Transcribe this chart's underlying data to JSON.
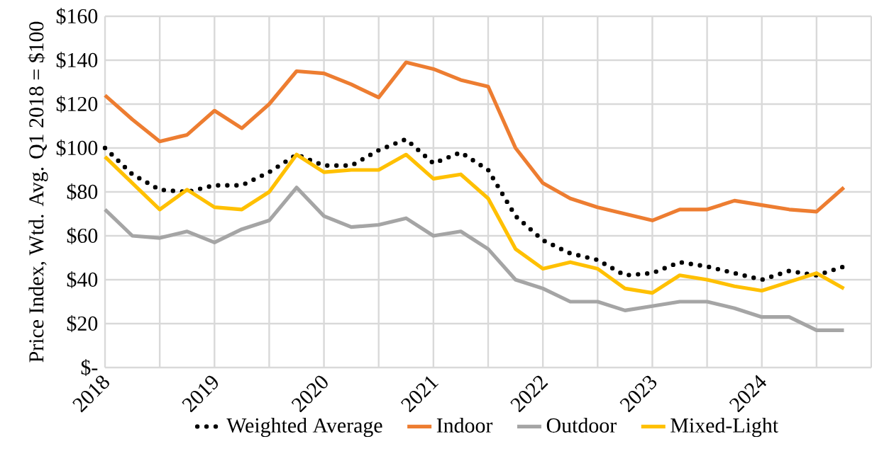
{
  "chart_data": {
    "type": "line",
    "ylabel": "Price Index, Wtd. Avg. Q1 2018 = $100",
    "categories": [
      "2018",
      null,
      null,
      null,
      "2019",
      null,
      null,
      null,
      "2020",
      null,
      null,
      null,
      "2021",
      null,
      null,
      null,
      "2022",
      null,
      null,
      null,
      "2023",
      null,
      null,
      null,
      "2024",
      null,
      null,
      null
    ],
    "series": [
      {
        "name": "Weighted Average",
        "color": "#000000",
        "line_style": "dotted",
        "values": [
          100,
          88,
          81,
          80,
          83,
          83,
          89,
          97,
          92,
          92,
          99,
          104,
          93,
          98,
          90,
          69,
          58,
          52,
          49,
          42,
          43,
          48,
          46,
          43,
          40,
          44,
          42,
          46
        ]
      },
      {
        "name": "Indoor",
        "color": "#ed7d31",
        "values": [
          124,
          113,
          103,
          106,
          117,
          109,
          120,
          135,
          134,
          129,
          123,
          139,
          136,
          131,
          128,
          100,
          84,
          77,
          73,
          70,
          67,
          72,
          72,
          76,
          74,
          72,
          71,
          82
        ]
      },
      {
        "name": "Outdoor",
        "color": "#a5a5a5",
        "values": [
          72,
          60,
          59,
          62,
          57,
          63,
          67,
          82,
          69,
          64,
          65,
          68,
          60,
          62,
          54,
          40,
          36,
          30,
          30,
          26,
          28,
          30,
          30,
          27,
          23,
          23,
          17,
          17
        ]
      },
      {
        "name": "Mixed-Light",
        "color": "#ffc000",
        "values": [
          96,
          84,
          72,
          81,
          73,
          72,
          80,
          97,
          89,
          90,
          90,
          97,
          86,
          88,
          77,
          54,
          45,
          48,
          45,
          36,
          34,
          42,
          40,
          37,
          35,
          39,
          43,
          36
        ]
      }
    ],
    "ylim": [
      0,
      160
    ],
    "yticks": [
      {
        "value": 0,
        "label": "$-"
      },
      {
        "value": 20,
        "label": "$20"
      },
      {
        "value": 40,
        "label": "$40"
      },
      {
        "value": 60,
        "label": "$60"
      },
      {
        "value": 80,
        "label": "$80"
      },
      {
        "value": 100,
        "label": "$100"
      },
      {
        "value": 120,
        "label": "$120"
      },
      {
        "value": 140,
        "label": "$140"
      },
      {
        "value": 160,
        "label": "$160"
      }
    ],
    "grid": true,
    "legend": "bottom",
    "line_style": "solid"
  }
}
